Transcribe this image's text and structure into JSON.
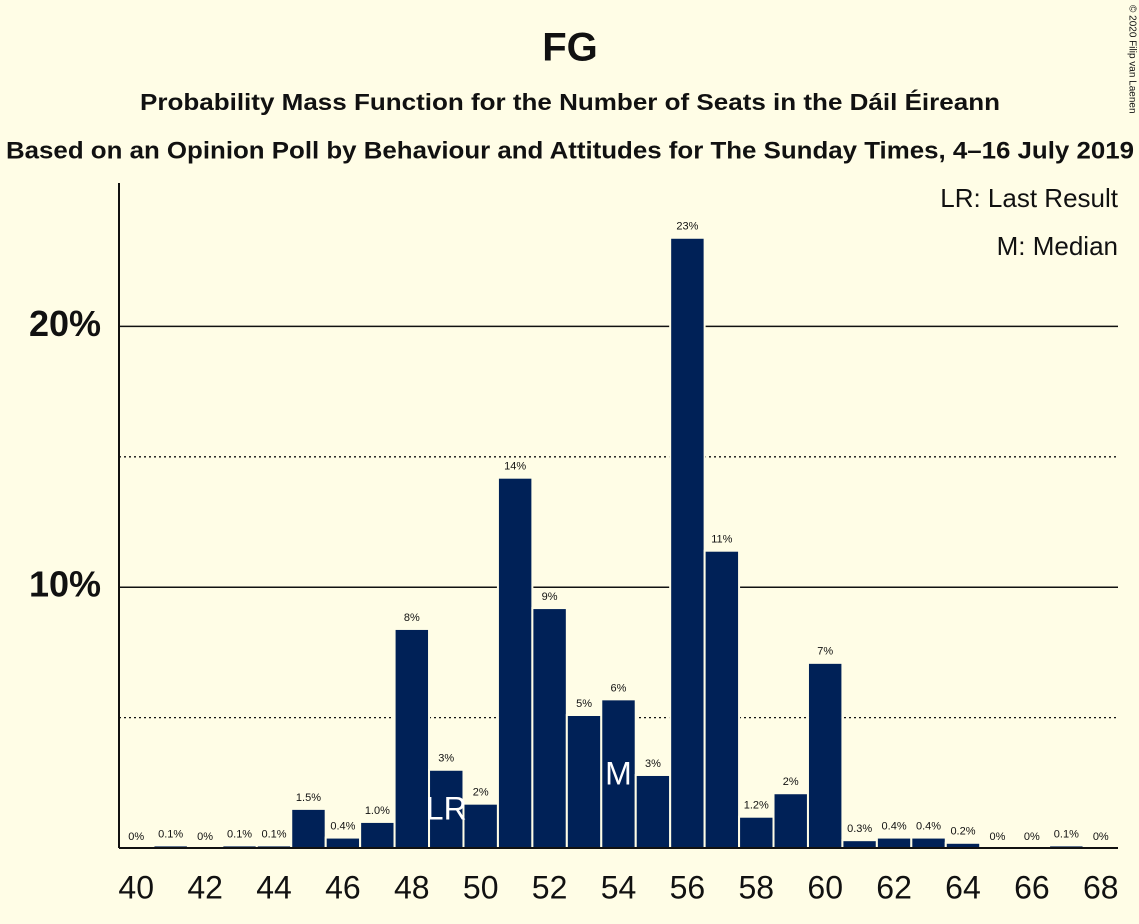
{
  "chart_data": {
    "type": "bar",
    "title": "FG",
    "subtitle": "Probability Mass Function for the Number of Seats in the Dáil Éireann",
    "subtitle2": "Based on an Opinion Poll by Behaviour and Attitudes for The Sunday Times, 4–16 July 2019",
    "copyright": "© 2020 Filip van Laenen",
    "x": [
      40,
      41,
      42,
      43,
      44,
      45,
      46,
      47,
      48,
      49,
      50,
      51,
      52,
      53,
      54,
      55,
      56,
      57,
      58,
      59,
      60,
      61,
      62,
      63,
      64,
      65,
      66,
      67,
      68
    ],
    "values": [
      0,
      0.1,
      0,
      0.1,
      0.1,
      1.5,
      0.4,
      1.0,
      8.4,
      3.0,
      1.7,
      14.2,
      9.2,
      5.1,
      5.7,
      2.8,
      23.4,
      11.4,
      1.2,
      2.1,
      7.1,
      0.3,
      0.4,
      0.4,
      0.2,
      0,
      0,
      0.1,
      0
    ],
    "value_labels": [
      "0%",
      "0.1%",
      "0%",
      "0.1%",
      "0.1%",
      "1.5%",
      "0.4%",
      "1.0%",
      "8%",
      "3%",
      "2%",
      "14%",
      "9%",
      "5%",
      "6%",
      "3%",
      "23%",
      "11%",
      "1.2%",
      "2%",
      "7%",
      "0.3%",
      "0.4%",
      "0.4%",
      "0.2%",
      "0%",
      "0%",
      "0.1%",
      "0%"
    ],
    "color": "#002157",
    "xlim": [
      39.5,
      68.5
    ],
    "xticks": [
      40,
      42,
      44,
      46,
      48,
      50,
      52,
      54,
      56,
      58,
      60,
      62,
      64,
      66,
      68
    ],
    "ylim": [
      0,
      25.5
    ],
    "yticks": [
      {
        "value": 10,
        "label": "10%"
      },
      {
        "value": 20,
        "label": "20%"
      }
    ],
    "minor_yticks": [
      5,
      15
    ],
    "grid": true,
    "markers": [
      {
        "x": 49,
        "label": "LR"
      },
      {
        "x": 54,
        "label": "M"
      }
    ],
    "legend": [
      "LR: Last Result",
      "M: Median"
    ],
    "legend_position": "upper right"
  }
}
